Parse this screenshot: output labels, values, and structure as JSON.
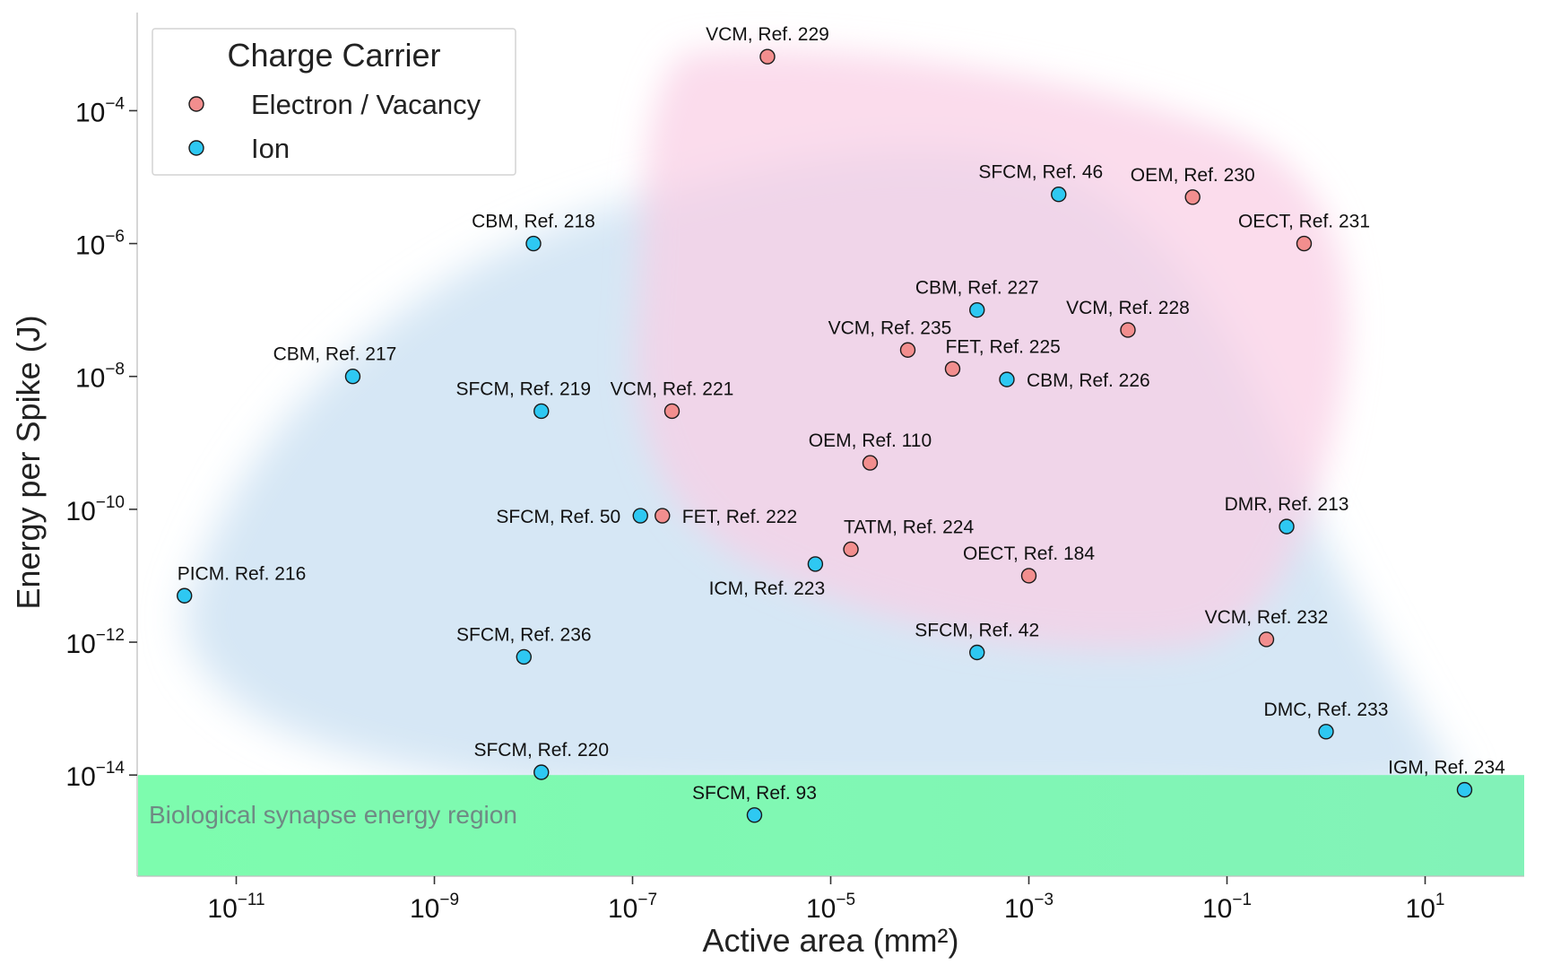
{
  "chart_data": {
    "type": "scatter",
    "title": "",
    "xlabel": "Active area (mm²)",
    "ylabel": "Energy per Spike (J)",
    "xscale": "log",
    "yscale": "log",
    "xlim": [
      1e-12,
      100.0
    ],
    "ylim": [
      3e-16,
      0.003
    ],
    "x_ticks": [
      {
        "value": 1e-11,
        "base": "10",
        "exp": "−11"
      },
      {
        "value": 1e-09,
        "base": "10",
        "exp": "−9"
      },
      {
        "value": 1e-07,
        "base": "10",
        "exp": "−7"
      },
      {
        "value": 1e-05,
        "base": "10",
        "exp": "−5"
      },
      {
        "value": 0.001,
        "base": "10",
        "exp": "−3"
      },
      {
        "value": 0.1,
        "base": "10",
        "exp": "−1"
      },
      {
        "value": 10.0,
        "base": "10",
        "exp": "1"
      }
    ],
    "y_ticks": [
      {
        "value": 0.0001,
        "base": "10",
        "exp": "−4"
      },
      {
        "value": 1e-06,
        "base": "10",
        "exp": "−6"
      },
      {
        "value": 1e-08,
        "base": "10",
        "exp": "−8"
      },
      {
        "value": 1e-10,
        "base": "10",
        "exp": "−10"
      },
      {
        "value": 1e-12,
        "base": "10",
        "exp": "−12"
      },
      {
        "value": 1e-14,
        "base": "10",
        "exp": "−14"
      }
    ],
    "legend": {
      "title": "Charge Carrier",
      "placement": "top-left",
      "entries": [
        {
          "name": "Electron / Vacancy",
          "color": "#f28e8e"
        },
        {
          "name": "Ion",
          "color": "#2ec8f2"
        }
      ]
    },
    "annotation": {
      "text": "Biological synapse energy region",
      "y_max": 1e-14,
      "color": "#7dfcae"
    },
    "series": [
      {
        "name": "Electron / Vacancy",
        "color": "#f28e8e",
        "points": [
          {
            "label": "VCM, Ref. 229",
            "x": 2.3e-06,
            "y": 0.00065,
            "anchor": "above"
          },
          {
            "label": "OEM, Ref. 230",
            "x": 0.045,
            "y": 5e-06,
            "anchor": "above"
          },
          {
            "label": "OECT, Ref. 231",
            "x": 0.6,
            "y": 1e-06,
            "anchor": "above"
          },
          {
            "label": "VCM, Ref. 228",
            "x": 0.01,
            "y": 5e-08,
            "anchor": "above"
          },
          {
            "label": "VCM, Ref. 235",
            "x": 6e-05,
            "y": 2.5e-08,
            "anchor": "above-left"
          },
          {
            "label": "FET, Ref. 225",
            "x": 0.00017,
            "y": 1.3e-08,
            "anchor": "above-right"
          },
          {
            "label": "VCM, Ref. 221",
            "x": 2.5e-07,
            "y": 3e-09,
            "anchor": "above"
          },
          {
            "label": "OEM, Ref. 110",
            "x": 2.5e-05,
            "y": 5e-10,
            "anchor": "above"
          },
          {
            "label": "FET, Ref. 222",
            "x": 2e-07,
            "y": 8e-11,
            "anchor": "right"
          },
          {
            "label": "TATM, Ref. 224",
            "x": 1.6e-05,
            "y": 2.5e-11,
            "anchor": "above-right"
          },
          {
            "label": "OECT, Ref. 184",
            "x": 0.001,
            "y": 1e-11,
            "anchor": "above"
          },
          {
            "label": "VCM, Ref. 232",
            "x": 0.25,
            "y": 1.1e-12,
            "anchor": "above"
          }
        ]
      },
      {
        "name": "Ion",
        "color": "#2ec8f2",
        "points": [
          {
            "label": "SFCM, Ref. 46",
            "x": 0.002,
            "y": 5.5e-06,
            "anchor": "above-left"
          },
          {
            "label": "CBM, Ref. 218",
            "x": 1e-08,
            "y": 1e-06,
            "anchor": "above"
          },
          {
            "label": "CBM, Ref. 227",
            "x": 0.0003,
            "y": 1e-07,
            "anchor": "above"
          },
          {
            "label": "CBM, Ref. 217",
            "x": 1.5e-10,
            "y": 1e-08,
            "anchor": "above-left"
          },
          {
            "label": "CBM, Ref. 226",
            "x": 0.0006,
            "y": 9e-09,
            "anchor": "right"
          },
          {
            "label": "SFCM, Ref. 219",
            "x": 1.2e-08,
            "y": 3e-09,
            "anchor": "above-left"
          },
          {
            "label": "SFCM, Ref. 50",
            "x": 1.2e-07,
            "y": 8e-11,
            "anchor": "left"
          },
          {
            "label": "DMR, Ref. 213",
            "x": 0.4,
            "y": 5.5e-11,
            "anchor": "above"
          },
          {
            "label": "ICM, Ref. 223",
            "x": 7e-06,
            "y": 1.5e-11,
            "anchor": "below-left"
          },
          {
            "label": "PICM. Ref. 216",
            "x": 3e-12,
            "y": 5e-12,
            "anchor": "above-right"
          },
          {
            "label": "SFCM, Ref. 236",
            "x": 8e-09,
            "y": 6e-13,
            "anchor": "above"
          },
          {
            "label": "SFCM, Ref. 42",
            "x": 0.0003,
            "y": 7e-13,
            "anchor": "above"
          },
          {
            "label": "DMC, Ref. 233",
            "x": 1,
            "y": 4.5e-14,
            "anchor": "above"
          },
          {
            "label": "SFCM, Ref. 220",
            "x": 1.2e-08,
            "y": 1.1e-14,
            "anchor": "above"
          },
          {
            "label": "IGM, Ref. 234",
            "x": 25,
            "y": 6e-15,
            "anchor": "above-left"
          },
          {
            "label": "SFCM, Ref. 93",
            "x": 1.7e-06,
            "y": 2.5e-15,
            "anchor": "above"
          }
        ]
      }
    ]
  }
}
